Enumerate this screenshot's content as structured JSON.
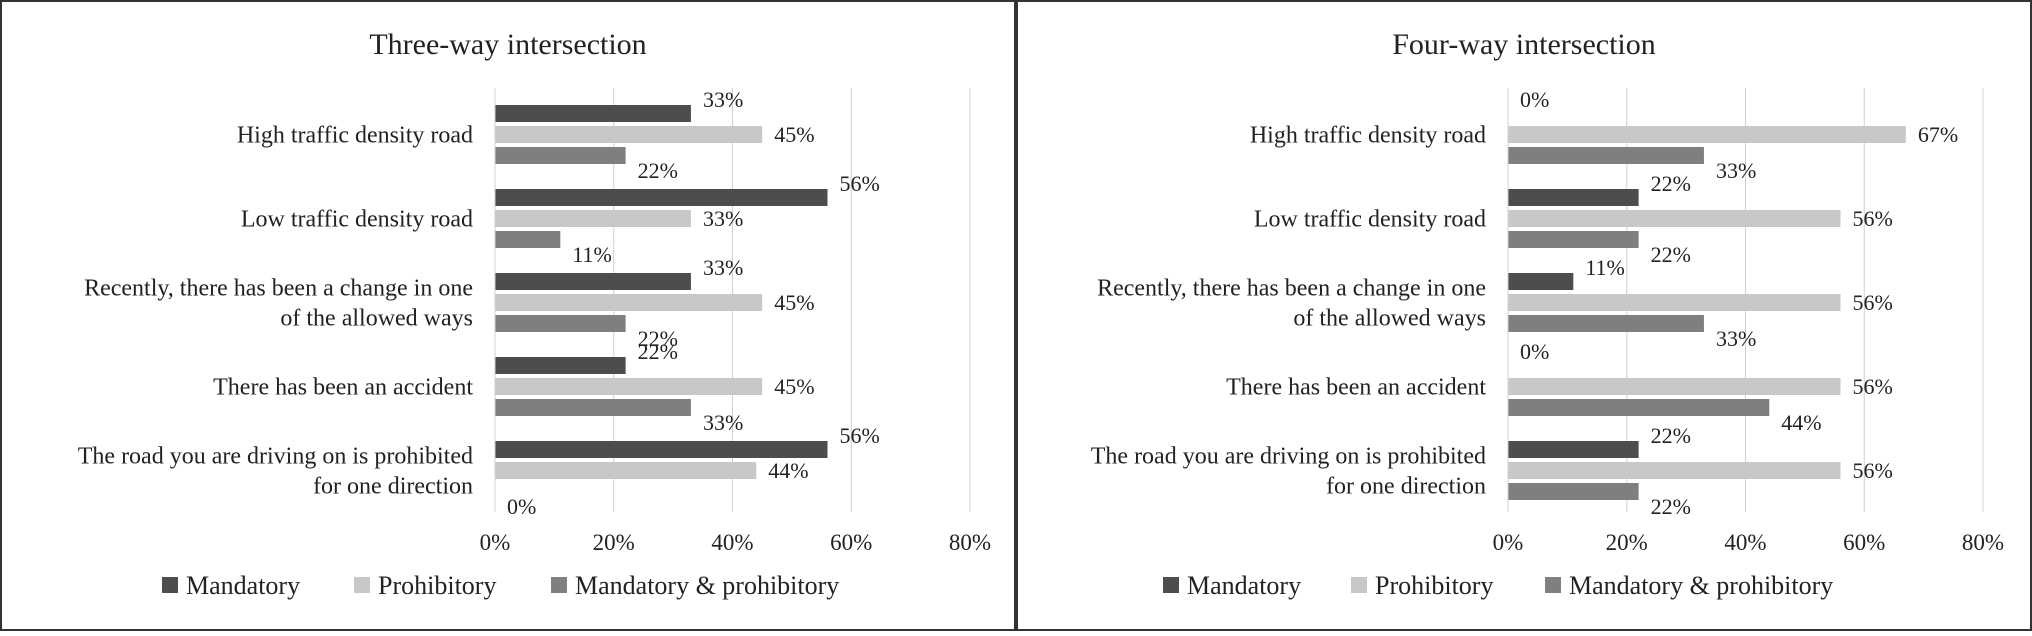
{
  "colors": {
    "mandatory": "#4d4d4d",
    "prohibitory": "#c8c8c8",
    "mandatory_prohibitory": "#7f7f7f",
    "gridline": "#d0d0d0"
  },
  "chart_data": [
    {
      "type": "bar",
      "orientation": "horizontal",
      "title": "Three-way  intersection",
      "categories": [
        [
          "High traffic density road"
        ],
        [
          "Low traffic density road"
        ],
        [
          "Recently, there has been a change in one",
          "of the allowed ways"
        ],
        [
          "There has been an accident"
        ],
        [
          "The road you are driving on is prohibited",
          "for one direction"
        ]
      ],
      "series": [
        {
          "name": "Mandatory",
          "values": [
            33,
            56,
            33,
            22,
            56
          ],
          "labels": [
            "33%",
            "56%",
            "33%",
            "22%",
            "56%"
          ]
        },
        {
          "name": "Prohibitory",
          "values": [
            45,
            33,
            45,
            45,
            44
          ],
          "labels": [
            "45%",
            "33%",
            "45%",
            "45%",
            "44%"
          ]
        },
        {
          "name": "Mandatory & prohibitory",
          "values": [
            22,
            11,
            22,
            33,
            0
          ],
          "labels": [
            "22%",
            "11%",
            "22%",
            "33%",
            "0%"
          ]
        }
      ],
      "xlim": [
        0,
        80
      ],
      "xticks": [
        "0%",
        "20%",
        "40%",
        "60%",
        "80%"
      ],
      "grid": "vertical",
      "legend": "bottom"
    },
    {
      "type": "bar",
      "orientation": "horizontal",
      "title": "Four-way intersection",
      "categories": [
        [
          "High traffic density road"
        ],
        [
          "Low traffic density road"
        ],
        [
          "Recently, there has been a change in one",
          "of the allowed ways"
        ],
        [
          "There has been an accident"
        ],
        [
          "The road you are driving on is prohibited",
          "for one direction"
        ]
      ],
      "series": [
        {
          "name": "Mandatory",
          "values": [
            0,
            22,
            11,
            0,
            22
          ],
          "labels": [
            "0%",
            "22%",
            "11%",
            "0%",
            "22%"
          ]
        },
        {
          "name": "Prohibitory",
          "values": [
            67,
            56,
            56,
            56,
            56
          ],
          "labels": [
            "67%",
            "56%",
            "56%",
            "56%",
            "56%"
          ]
        },
        {
          "name": "Mandatory & prohibitory",
          "values": [
            33,
            22,
            33,
            44,
            22
          ],
          "labels": [
            "33%",
            "22%",
            "33%",
            "44%",
            "22%"
          ]
        }
      ],
      "xlim": [
        0,
        80
      ],
      "xticks": [
        "0%",
        "20%",
        "40%",
        "60%",
        "80%"
      ],
      "grid": "vertical",
      "legend": "bottom"
    }
  ]
}
